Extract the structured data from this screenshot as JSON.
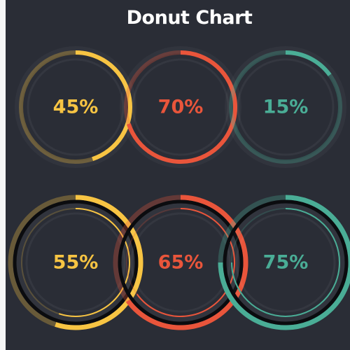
{
  "title": "Donut Chart",
  "chart_data": [
    {
      "type": "donut",
      "variant": "single-ring",
      "values": [
        45,
        70,
        15
      ],
      "labels": [
        "45%",
        "70%",
        "15%"
      ],
      "colors": [
        "#f7c443",
        "#e9553b",
        "#4aad96"
      ]
    },
    {
      "type": "donut",
      "variant": "double-ring",
      "values": [
        55,
        65,
        75
      ],
      "labels": [
        "55%",
        "65%",
        "75%"
      ],
      "colors": [
        "#f7c443",
        "#e9553b",
        "#4aad96"
      ]
    }
  ]
}
